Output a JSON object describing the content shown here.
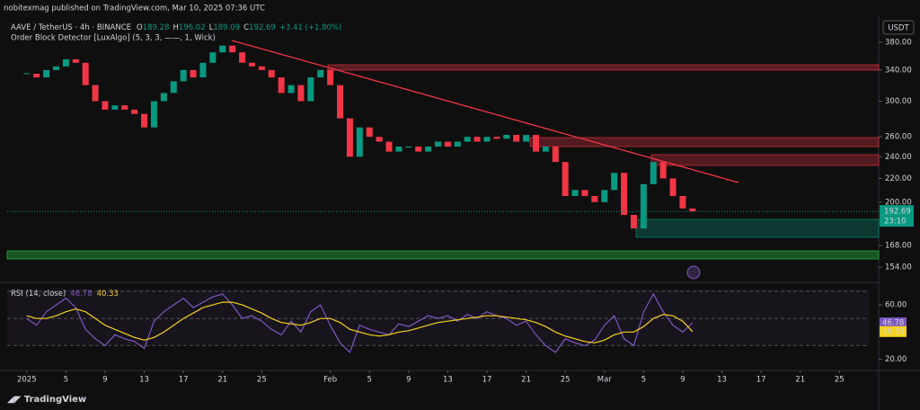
{
  "chart_data": [
    {
      "type": "candlestick",
      "publisher": "nobitexmag published on TradingView.com, Mar 10, 2025 07:36 UTC",
      "symbol": "AAVE / TetherUS · 4h · BINANCE",
      "ohlc_labels": [
        "O",
        "H",
        "L",
        "C"
      ],
      "ohlc": [
        189.28,
        196.02,
        189.09,
        192.69
      ],
      "change_label": "+3.41 (+1.80%)",
      "indicator": "Order Block Detector [LuxAlgo] (5, 3, 3, ——, 1, Wick)",
      "currency": "USDT",
      "last_price": 192.69,
      "countdown": "23:10",
      "brand": "TradingView",
      "up_color": "#089981",
      "down_color": "#f23645",
      "log_scale": true,
      "ylim": [
        146,
        419
      ],
      "yticks": [
        {
          "value": 380,
          "label": "380.00"
        },
        {
          "value": 340,
          "label": "340.00"
        },
        {
          "value": 300,
          "label": "300.00"
        },
        {
          "value": 260,
          "label": "260.00"
        },
        {
          "value": 240,
          "label": "240.00"
        },
        {
          "value": 220,
          "label": "220.00"
        },
        {
          "value": 200,
          "label": "200.00"
        },
        {
          "value": 168,
          "label": "168.00"
        },
        {
          "value": 154,
          "label": "154.00"
        }
      ],
      "xlim": [
        "2024-12-30",
        "2025-03-28"
      ],
      "xticks": [
        {
          "value": "2025-01-01",
          "label": "2025"
        },
        {
          "value": "2025-01-05",
          "label": "5"
        },
        {
          "value": "2025-01-09",
          "label": "9"
        },
        {
          "value": "2025-01-13",
          "label": "13"
        },
        {
          "value": "2025-01-17",
          "label": "17"
        },
        {
          "value": "2025-01-21",
          "label": "21"
        },
        {
          "value": "2025-01-25",
          "label": "25"
        },
        {
          "value": "2025-02-01",
          "label": "Feb"
        },
        {
          "value": "2025-02-05",
          "label": "5"
        },
        {
          "value": "2025-02-09",
          "label": "9"
        },
        {
          "value": "2025-02-13",
          "label": "13"
        },
        {
          "value": "2025-02-17",
          "label": "17"
        },
        {
          "value": "2025-02-21",
          "label": "21"
        },
        {
          "value": "2025-02-25",
          "label": "25"
        },
        {
          "value": "2025-03-01",
          "label": "Mar"
        },
        {
          "value": "2025-03-05",
          "label": "5"
        },
        {
          "value": "2025-03-09",
          "label": "9"
        },
        {
          "value": "2025-03-13",
          "label": "13"
        },
        {
          "value": "2025-03-17",
          "label": "17"
        },
        {
          "value": "2025-03-21",
          "label": "21"
        },
        {
          "value": "2025-03-25",
          "label": "25"
        }
      ],
      "x": [
        "2025-01-01",
        "2025-01-02",
        "2025-01-03",
        "2025-01-04",
        "2025-01-05",
        "2025-01-06",
        "2025-01-07",
        "2025-01-08",
        "2025-01-09",
        "2025-01-10",
        "2025-01-11",
        "2025-01-12",
        "2025-01-13",
        "2025-01-14",
        "2025-01-15",
        "2025-01-16",
        "2025-01-17",
        "2025-01-18",
        "2025-01-19",
        "2025-01-20",
        "2025-01-21",
        "2025-01-22",
        "2025-01-23",
        "2025-01-24",
        "2025-01-25",
        "2025-01-26",
        "2025-01-27",
        "2025-01-28",
        "2025-01-29",
        "2025-01-30",
        "2025-01-31",
        "2025-02-01",
        "2025-02-02",
        "2025-02-03",
        "2025-02-04",
        "2025-02-05",
        "2025-02-06",
        "2025-02-07",
        "2025-02-08",
        "2025-02-09",
        "2025-02-10",
        "2025-02-11",
        "2025-02-12",
        "2025-02-13",
        "2025-02-14",
        "2025-02-15",
        "2025-02-16",
        "2025-02-17",
        "2025-02-18",
        "2025-02-19",
        "2025-02-20",
        "2025-02-21",
        "2025-02-22",
        "2025-02-23",
        "2025-02-24",
        "2025-02-25",
        "2025-02-26",
        "2025-02-27",
        "2025-02-28",
        "2025-03-01",
        "2025-03-02",
        "2025-03-03",
        "2025-03-04",
        "2025-03-05",
        "2025-03-06",
        "2025-03-07",
        "2025-03-08",
        "2025-03-09",
        "2025-03-10"
      ],
      "series": [
        {
          "name": "AAVE / TetherUS",
          "values": [
            335,
            330,
            340,
            345,
            355,
            350,
            320,
            300,
            290,
            295,
            290,
            285,
            270,
            300,
            310,
            325,
            340,
            330,
            350,
            365,
            375,
            365,
            350,
            345,
            340,
            330,
            310,
            320,
            300,
            330,
            340,
            320,
            280,
            240,
            270,
            260,
            255,
            245,
            250,
            250,
            245,
            250,
            255,
            250,
            255,
            260,
            255,
            260,
            258,
            262,
            255,
            262,
            245,
            250,
            235,
            205,
            210,
            205,
            200,
            210,
            225,
            190,
            180,
            215,
            235,
            220,
            205,
            195,
            192.69
          ]
        }
      ]
    },
    {
      "type": "line",
      "indicator": "RSI (14, close)",
      "ylim": [
        13,
        74
      ],
      "yticks": [
        {
          "value": 60,
          "label": "60.00"
        },
        {
          "value": 20,
          "label": "20.00"
        }
      ],
      "series": [
        {
          "name": "RSI",
          "color": "#7e57c2",
          "value_label": "46.78",
          "values": [
            50,
            45,
            55,
            60,
            65,
            58,
            42,
            35,
            30,
            38,
            35,
            33,
            28,
            48,
            55,
            60,
            65,
            58,
            62,
            66,
            68,
            60,
            50,
            52,
            48,
            42,
            38,
            48,
            40,
            55,
            60,
            45,
            32,
            25,
            45,
            42,
            40,
            38,
            46,
            44,
            48,
            52,
            50,
            52,
            48,
            53,
            50,
            55,
            52,
            50,
            45,
            48,
            38,
            30,
            25,
            35,
            32,
            30,
            34,
            45,
            52,
            35,
            30,
            55,
            68,
            55,
            45,
            40,
            46.78
          ]
        },
        {
          "name": "RSI MA",
          "color": "#f7d21b",
          "value_label": "40.33",
          "values": [
            52,
            50,
            50,
            52,
            55,
            57,
            55,
            50,
            45,
            42,
            39,
            36,
            34,
            36,
            40,
            45,
            50,
            54,
            58,
            60,
            62,
            62,
            60,
            57,
            54,
            50,
            47,
            46,
            45,
            47,
            50,
            50,
            47,
            42,
            40,
            38,
            37,
            38,
            40,
            41,
            43,
            45,
            47,
            48,
            49,
            50,
            51,
            52,
            52,
            51,
            50,
            49,
            47,
            44,
            40,
            37,
            35,
            33,
            32,
            34,
            38,
            40,
            40,
            44,
            50,
            53,
            52,
            48,
            40.33
          ]
        }
      ]
    }
  ]
}
